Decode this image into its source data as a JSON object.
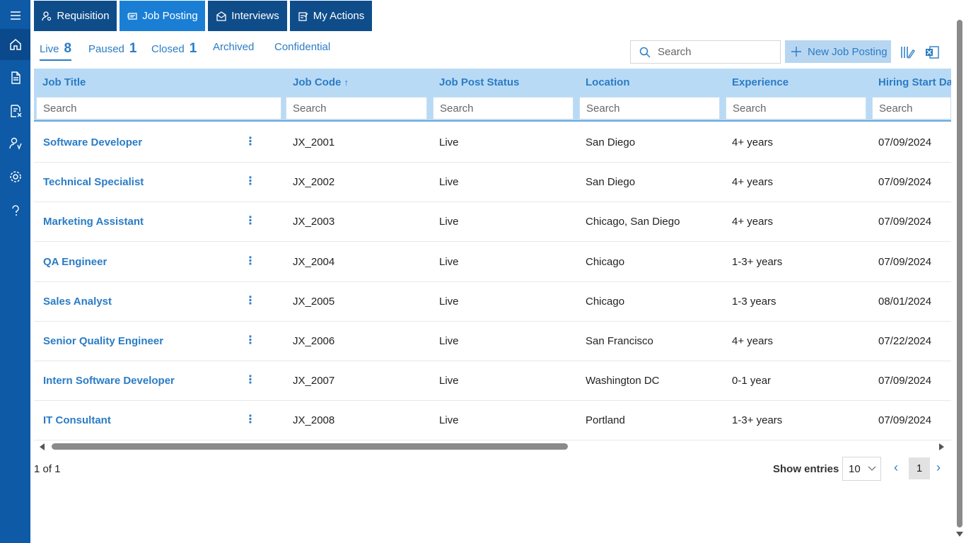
{
  "top_tabs": [
    {
      "label": "Requisition",
      "icon": "person-search-icon",
      "active": false
    },
    {
      "label": "Job Posting",
      "icon": "job-posting-icon",
      "active": true
    },
    {
      "label": "Interviews",
      "icon": "interviews-icon",
      "active": false
    },
    {
      "label": "My Actions",
      "icon": "actions-icon",
      "active": false
    }
  ],
  "sub_tabs": [
    {
      "label": "Live",
      "count": "8",
      "active": true
    },
    {
      "label": "Paused",
      "count": "1"
    },
    {
      "label": "Closed",
      "count": "1"
    },
    {
      "label": "Archived",
      "count": ""
    },
    {
      "label": "Confidential",
      "count": ""
    }
  ],
  "toolbar": {
    "search_placeholder": "Search",
    "new_button_label": "New Job Posting"
  },
  "columns": [
    {
      "label": "Job Title",
      "filter": "Search"
    },
    {
      "label": "Job Code",
      "sort": "↑",
      "filter": "Search"
    },
    {
      "label": "Job Post Status",
      "filter": "Search"
    },
    {
      "label": "Location",
      "filter": "Search"
    },
    {
      "label": "Experience",
      "filter": "Search"
    },
    {
      "label": "Hiring Start Da",
      "filter": "Search"
    }
  ],
  "rows": [
    {
      "title": "Software Developer",
      "code": "JX_2001",
      "status": "Live",
      "location": "San Diego",
      "experience": "4+ years",
      "date": "07/09/2024"
    },
    {
      "title": "Technical Specialist",
      "code": "JX_2002",
      "status": "Live",
      "location": "San Diego",
      "experience": "4+ years",
      "date": "07/09/2024"
    },
    {
      "title": "Marketing Assistant",
      "code": "JX_2003",
      "status": "Live",
      "location": "Chicago, San Diego",
      "experience": "4+ years",
      "date": "07/09/2024"
    },
    {
      "title": "QA Engineer",
      "code": "JX_2004",
      "status": "Live",
      "location": "Chicago",
      "experience": "1-3+ years",
      "date": "07/09/2024"
    },
    {
      "title": "Sales Analyst",
      "code": "JX_2005",
      "status": "Live",
      "location": "Chicago",
      "experience": "1-3 years",
      "date": "08/01/2024"
    },
    {
      "title": "Senior Quality Engineer",
      "code": "JX_2006",
      "status": "Live",
      "location": "San Francisco",
      "experience": "4+ years",
      "date": "07/22/2024"
    },
    {
      "title": "Intern Software Developer",
      "code": "JX_2007",
      "status": "Live",
      "location": "Washington DC",
      "experience": "0-1 year",
      "date": "07/09/2024"
    },
    {
      "title": "IT Consultant",
      "code": "JX_2008",
      "status": "Live",
      "location": "Portland",
      "experience": "1-3+ years",
      "date": "07/09/2024"
    }
  ],
  "footer": {
    "range": "1 of 1",
    "show_entries_label": "Show entries",
    "entries_value": "10",
    "current_page": "1"
  },
  "colors": {
    "rail": "#0e5aa7",
    "accent": "#2b7cc5",
    "header_bg": "#b9daf5",
    "tab_active": "#1a7fd4",
    "tab": "#0f4d8a"
  }
}
